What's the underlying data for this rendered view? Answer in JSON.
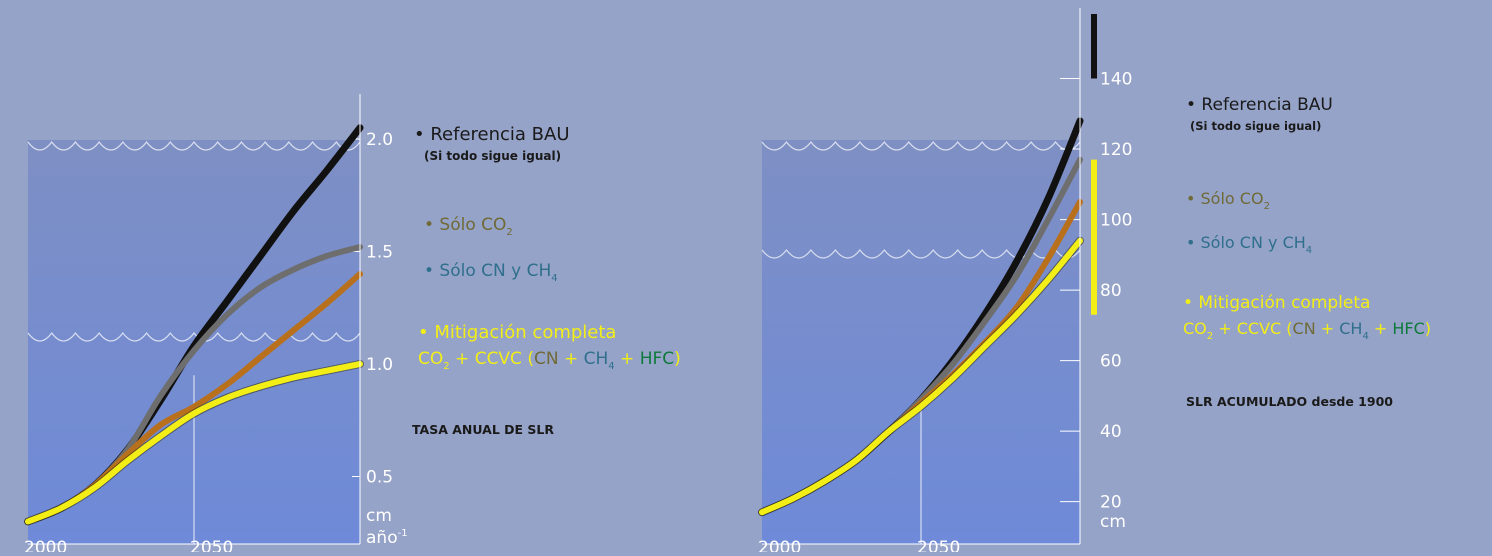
{
  "colors": {
    "background": "#96a3c8",
    "water_top": "#7e8fc4",
    "water_bottom": "#6e8ad8",
    "bau": "#111111",
    "co2": "#6e6e6e",
    "cn_ch4": "#b8701c",
    "full_mitigation": "#f3ee16",
    "co2_label": "#6f6a36",
    "cn_label": "#2f6f8c",
    "hfc_label": "#0e7a3a",
    "text_dark": "#1a1a1a",
    "text_light": "#ffffff"
  },
  "legend": {
    "bau": "• Referencia BAU",
    "bau_sub": "(Si todo sigue igual)",
    "co2_prefix": "• Sólo CO",
    "co2_sub": "2",
    "cn_prefix": "• Sólo CN y CH",
    "cn_sub": "4",
    "full": "• Mitigación completa",
    "full_line2": {
      "co": "CO",
      "co_sub": "2",
      "plus1": " + CCVC (",
      "cn": "CN",
      "plus2": " + ",
      "ch": "CH",
      "ch_sub": "4",
      "plus3": " + ",
      "hfc": "HFC",
      "close": ")"
    }
  },
  "chart_data": [
    {
      "type": "line",
      "title": "TASA ANUAL DE SLR",
      "xlabel": "",
      "ylabel": "cm año",
      "ylabel_line1": "cm",
      "ylabel_line2": "año",
      "ylabel_sup": "-1",
      "xlim": [
        2000,
        2100
      ],
      "ylim": [
        0.2,
        2.2
      ],
      "x_ticks": [
        {
          "v": 2000,
          "label": "2000"
        },
        {
          "v": 2050,
          "label": "2050"
        }
      ],
      "y_ticks": [
        {
          "v": 0.5,
          "label": "0.5"
        },
        {
          "v": 1.0,
          "label": "1.0"
        },
        {
          "v": 1.5,
          "label": "1.5"
        },
        {
          "v": 2.0,
          "label": "2.0"
        }
      ],
      "x": [
        2000,
        2010,
        2020,
        2030,
        2040,
        2050,
        2060,
        2070,
        2080,
        2090,
        2100
      ],
      "series": [
        {
          "name": "Referencia BAU",
          "key": "bau",
          "values": [
            0.3,
            0.36,
            0.46,
            0.62,
            0.84,
            1.08,
            1.28,
            1.48,
            1.68,
            1.86,
            2.05
          ]
        },
        {
          "name": "Sólo CO2",
          "key": "co2",
          "values": [
            0.3,
            0.36,
            0.46,
            0.62,
            0.86,
            1.06,
            1.22,
            1.34,
            1.42,
            1.48,
            1.52
          ]
        },
        {
          "name": "Sólo CN y CH4",
          "key": "cn_ch4",
          "values": [
            0.3,
            0.36,
            0.46,
            0.6,
            0.73,
            0.81,
            0.91,
            1.03,
            1.15,
            1.27,
            1.4
          ]
        },
        {
          "name": "Mitigación completa",
          "key": "full_mitigation",
          "values": [
            0.3,
            0.36,
            0.45,
            0.57,
            0.68,
            0.78,
            0.85,
            0.9,
            0.94,
            0.97,
            1.0
          ]
        }
      ]
    },
    {
      "type": "line",
      "title": "SLR ACUMULADO desde 1900",
      "xlabel": "",
      "ylabel": "cm",
      "xlim": [
        2000,
        2100
      ],
      "ylim": [
        8,
        160
      ],
      "x_ticks": [
        {
          "v": 2000,
          "label": "2000"
        },
        {
          "v": 2050,
          "label": "2050"
        }
      ],
      "y_ticks": [
        {
          "v": 20,
          "label": "20"
        },
        {
          "v": 40,
          "label": "40"
        },
        {
          "v": 60,
          "label": "60"
        },
        {
          "v": 80,
          "label": "80"
        },
        {
          "v": 100,
          "label": "100"
        },
        {
          "v": 120,
          "label": "120"
        },
        {
          "v": 140,
          "label": "140"
        }
      ],
      "x": [
        2000,
        2010,
        2020,
        2030,
        2040,
        2050,
        2060,
        2070,
        2080,
        2090,
        2100
      ],
      "series": [
        {
          "name": "Referencia BAU",
          "key": "bau",
          "values": [
            17,
            21,
            26,
            32,
            40,
            49,
            60,
            73,
            88,
            106,
            128
          ]
        },
        {
          "name": "Sólo CO2",
          "key": "co2",
          "values": [
            17,
            21,
            26,
            32,
            40,
            49,
            59,
            71,
            84,
            100,
            117
          ]
        },
        {
          "name": "Sólo CN y CH4",
          "key": "cn_ch4",
          "values": [
            17,
            21,
            26,
            32,
            40,
            48,
            56,
            65,
            75,
            89,
            105
          ]
        },
        {
          "name": "Mitigación completa",
          "key": "full_mitigation",
          "values": [
            17,
            21,
            26,
            32,
            40,
            47,
            55,
            64,
            73,
            83,
            94
          ]
        }
      ],
      "range_bars": [
        {
          "key": "bau",
          "low": 140,
          "high": 172
        },
        {
          "key": "full_mitigation",
          "low": 73,
          "high": 117
        }
      ]
    }
  ]
}
